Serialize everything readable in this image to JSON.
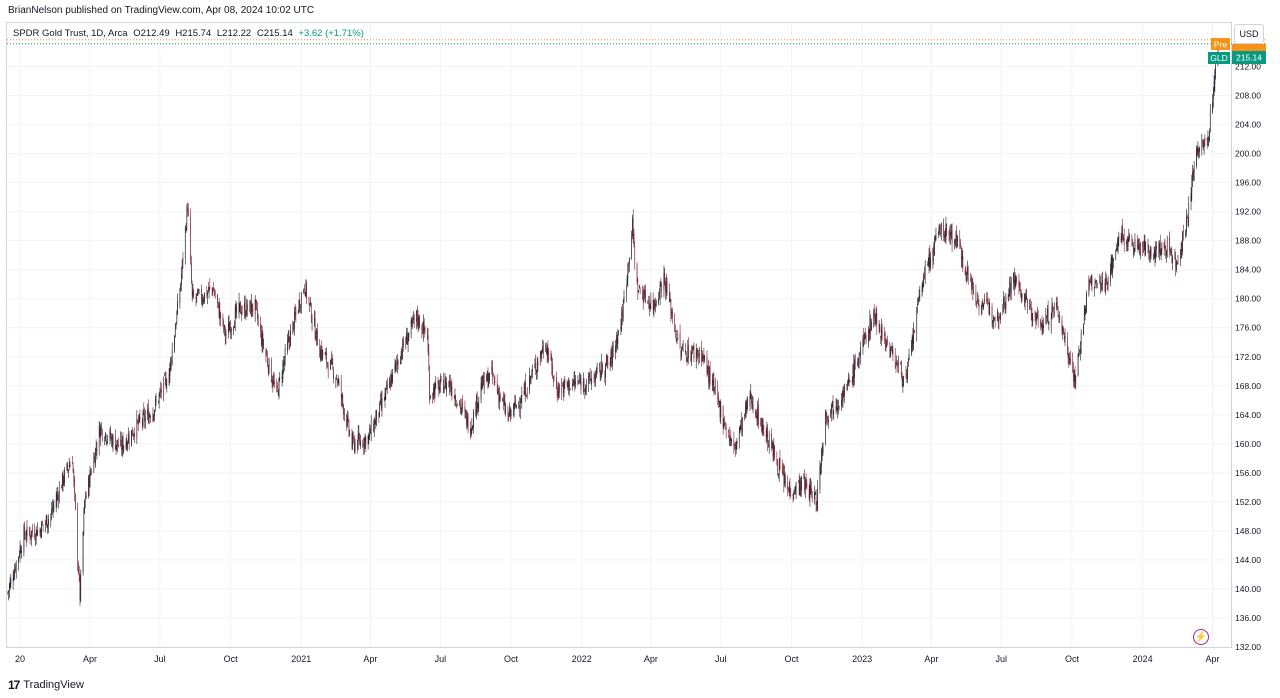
{
  "header": {
    "publisher": "BrianNelson published on TradingView.com, Apr 08, 2024 10:02 UTC"
  },
  "legend": {
    "symbol": "SPDR Gold Trust, 1D, Arca",
    "open": "O212.49",
    "high": "H215.74",
    "low": "L212.22",
    "close": "C215.14",
    "change": "+3.62 (+1.71%)"
  },
  "currency": "USD",
  "footer": {
    "brand": "TradingView",
    "logo_mark": "17"
  },
  "price_tag": {
    "ticker": "GLD",
    "value": "215.14",
    "pre_label": "Pre"
  },
  "colors": {
    "up": "#089981",
    "down": "#f23645",
    "candle": "#131722",
    "grid": "#f0f3fa",
    "pre": "#f7931a"
  },
  "chart_data": {
    "type": "candlestick",
    "symbol": "GLD",
    "ylim": [
      132,
      218
    ],
    "y_ticks": [
      "136.00",
      "140.00",
      "144.00",
      "148.00",
      "152.00",
      "156.00",
      "160.00",
      "164.00",
      "168.00",
      "172.00",
      "176.00",
      "180.00",
      "184.00",
      "188.00",
      "192.00",
      "196.00",
      "200.00",
      "204.00",
      "208.00",
      "212.00"
    ],
    "y_tick_values": [
      136,
      140,
      144,
      148,
      152,
      156,
      160,
      164,
      168,
      172,
      176,
      180,
      184,
      188,
      192,
      196,
      200,
      204,
      208,
      212
    ],
    "bottom_tick": "132.00",
    "x_range": [
      "2019-12-15",
      "2024-04-25"
    ],
    "x_ticks": [
      {
        "date": "2020-01-01",
        "label": "20"
      },
      {
        "date": "2020-04-01",
        "label": "Apr"
      },
      {
        "date": "2020-07-01",
        "label": "Jul"
      },
      {
        "date": "2020-10-01",
        "label": "Oct"
      },
      {
        "date": "2021-01-01",
        "label": "2021"
      },
      {
        "date": "2021-04-01",
        "label": "Apr"
      },
      {
        "date": "2021-07-01",
        "label": "Jul"
      },
      {
        "date": "2021-10-01",
        "label": "Oct"
      },
      {
        "date": "2022-01-01",
        "label": "2022"
      },
      {
        "date": "2022-04-01",
        "label": "Apr"
      },
      {
        "date": "2022-07-01",
        "label": "Jul"
      },
      {
        "date": "2022-10-01",
        "label": "Oct"
      },
      {
        "date": "2023-01-01",
        "label": "2023"
      },
      {
        "date": "2023-04-01",
        "label": "Apr"
      },
      {
        "date": "2023-07-01",
        "label": "Jul"
      },
      {
        "date": "2023-10-01",
        "label": "Oct"
      },
      {
        "date": "2024-01-01",
        "label": "2024"
      },
      {
        "date": "2024-04-01",
        "label": "Apr"
      }
    ],
    "last_price": 215.14,
    "pre_price": 215.7,
    "close_series": [
      {
        "date": "2019-12-16",
        "close": 139.5
      },
      {
        "date": "2020-01-06",
        "close": 147.4
      },
      {
        "date": "2020-01-27",
        "close": 148.2
      },
      {
        "date": "2020-02-10",
        "close": 150.2
      },
      {
        "date": "2020-02-24",
        "close": 154.6
      },
      {
        "date": "2020-03-09",
        "close": 158.1
      },
      {
        "date": "2020-03-16",
        "close": 144.5
      },
      {
        "date": "2020-03-19",
        "close": 139.0
      },
      {
        "date": "2020-03-25",
        "close": 152.0
      },
      {
        "date": "2020-04-14",
        "close": 162.1
      },
      {
        "date": "2020-05-11",
        "close": 159.5
      },
      {
        "date": "2020-06-01",
        "close": 162.5
      },
      {
        "date": "2020-06-22",
        "close": 164.6
      },
      {
        "date": "2020-07-13",
        "close": 169.7
      },
      {
        "date": "2020-07-27",
        "close": 181.0
      },
      {
        "date": "2020-08-06",
        "close": 193.0
      },
      {
        "date": "2020-08-12",
        "close": 180.0
      },
      {
        "date": "2020-08-24",
        "close": 180.2
      },
      {
        "date": "2020-09-08",
        "close": 181.5
      },
      {
        "date": "2020-09-24",
        "close": 175.0
      },
      {
        "date": "2020-10-12",
        "close": 178.5
      },
      {
        "date": "2020-11-02",
        "close": 178.8
      },
      {
        "date": "2020-11-09",
        "close": 175.0
      },
      {
        "date": "2020-11-30",
        "close": 166.7
      },
      {
        "date": "2020-12-14",
        "close": 173.5
      },
      {
        "date": "2021-01-05",
        "close": 182.0
      },
      {
        "date": "2021-01-25",
        "close": 173.0
      },
      {
        "date": "2021-02-16",
        "close": 169.3
      },
      {
        "date": "2021-03-08",
        "close": 159.9
      },
      {
        "date": "2021-03-29",
        "close": 160.8
      },
      {
        "date": "2021-04-19",
        "close": 166.2
      },
      {
        "date": "2021-05-10",
        "close": 172.5
      },
      {
        "date": "2021-05-31",
        "close": 177.5
      },
      {
        "date": "2021-06-14",
        "close": 175.0
      },
      {
        "date": "2021-06-17",
        "close": 167.1
      },
      {
        "date": "2021-07-12",
        "close": 168.5
      },
      {
        "date": "2021-08-09",
        "close": 162.3
      },
      {
        "date": "2021-08-23",
        "close": 168.0
      },
      {
        "date": "2021-09-06",
        "close": 169.5
      },
      {
        "date": "2021-09-27",
        "close": 163.6
      },
      {
        "date": "2021-10-18",
        "close": 167.0
      },
      {
        "date": "2021-11-15",
        "close": 174.0
      },
      {
        "date": "2021-11-29",
        "close": 167.5
      },
      {
        "date": "2021-12-20",
        "close": 168.3
      },
      {
        "date": "2022-01-10",
        "close": 168.5
      },
      {
        "date": "2022-02-07",
        "close": 171.3
      },
      {
        "date": "2022-02-22",
        "close": 177.2
      },
      {
        "date": "2022-03-08",
        "close": 190.0
      },
      {
        "date": "2022-03-14",
        "close": 181.5
      },
      {
        "date": "2022-04-04",
        "close": 179.0
      },
      {
        "date": "2022-04-18",
        "close": 183.0
      },
      {
        "date": "2022-05-09",
        "close": 172.7
      },
      {
        "date": "2022-06-06",
        "close": 172.5
      },
      {
        "date": "2022-07-04",
        "close": 163.5
      },
      {
        "date": "2022-07-18",
        "close": 159.1
      },
      {
        "date": "2022-08-08",
        "close": 166.5
      },
      {
        "date": "2022-09-05",
        "close": 159.5
      },
      {
        "date": "2022-09-26",
        "close": 153.6
      },
      {
        "date": "2022-10-17",
        "close": 154.5
      },
      {
        "date": "2022-11-03",
        "close": 152.2
      },
      {
        "date": "2022-11-14",
        "close": 164.0
      },
      {
        "date": "2022-12-12",
        "close": 167.5
      },
      {
        "date": "2023-01-16",
        "close": 177.8
      },
      {
        "date": "2023-02-06",
        "close": 173.0
      },
      {
        "date": "2023-02-27",
        "close": 168.6
      },
      {
        "date": "2023-03-20",
        "close": 182.5
      },
      {
        "date": "2023-04-13",
        "close": 189.6
      },
      {
        "date": "2023-05-03",
        "close": 188.3
      },
      {
        "date": "2023-05-29",
        "close": 180.0
      },
      {
        "date": "2023-06-26",
        "close": 177.6
      },
      {
        "date": "2023-07-17",
        "close": 182.8
      },
      {
        "date": "2023-08-07",
        "close": 178.5
      },
      {
        "date": "2023-08-21",
        "close": 176.3
      },
      {
        "date": "2023-09-11",
        "close": 178.9
      },
      {
        "date": "2023-10-05",
        "close": 168.9
      },
      {
        "date": "2023-10-23",
        "close": 182.0
      },
      {
        "date": "2023-11-13",
        "close": 181.8
      },
      {
        "date": "2023-12-04",
        "close": 189.0
      },
      {
        "date": "2023-12-18",
        "close": 187.3
      },
      {
        "date": "2024-01-15",
        "close": 186.6
      },
      {
        "date": "2024-02-05",
        "close": 187.0
      },
      {
        "date": "2024-02-14",
        "close": 184.6
      },
      {
        "date": "2024-03-01",
        "close": 192.0
      },
      {
        "date": "2024-03-11",
        "close": 200.8
      },
      {
        "date": "2024-03-25",
        "close": 201.2
      },
      {
        "date": "2024-04-05",
        "close": 211.5
      },
      {
        "date": "2024-04-08",
        "close": 215.14
      }
    ]
  }
}
